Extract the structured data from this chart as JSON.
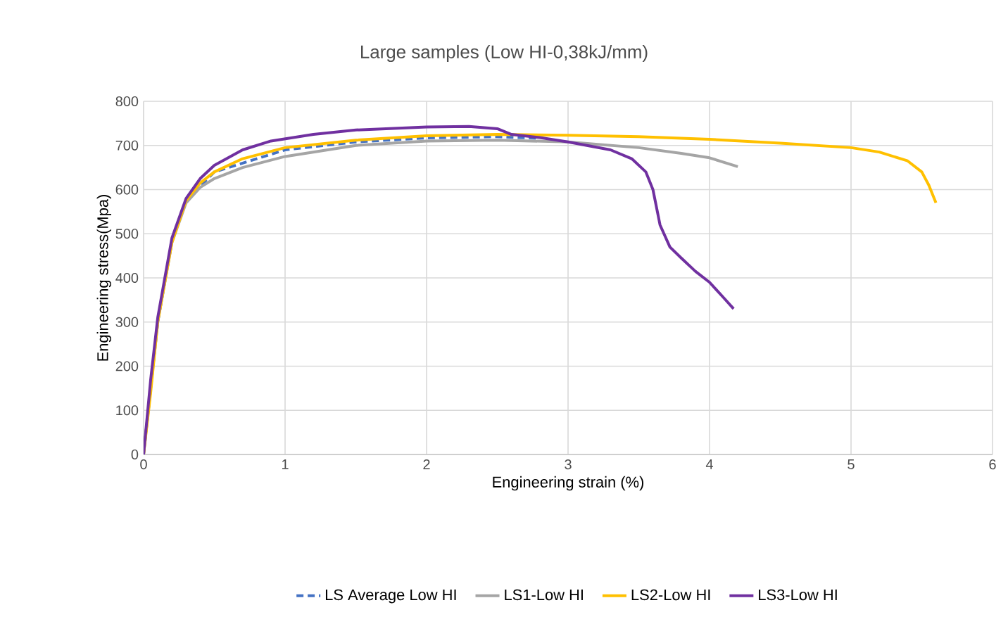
{
  "chart_data": {
    "type": "line",
    "title": "Large samples (Low HI-0,38kJ/mm)",
    "xlabel": "Engineering strain (%)",
    "ylabel": "Engineering stress(Mpa)",
    "xlim": [
      0,
      6
    ],
    "ylim": [
      0,
      800
    ],
    "xticks": [
      0,
      1,
      2,
      3,
      4,
      5,
      6
    ],
    "yticks": [
      0,
      100,
      200,
      300,
      400,
      500,
      600,
      700,
      800
    ],
    "grid": true,
    "legend": "bottom",
    "series": [
      {
        "name": "LS Average Low HI",
        "color": "#4472c4",
        "line_style": "dashed",
        "x": [
          0,
          0.1,
          0.2,
          0.3,
          0.5,
          1,
          1.5,
          2,
          2.5,
          2.8
        ],
        "values": [
          0,
          300,
          483,
          575,
          640,
          690,
          708,
          717,
          720,
          716
        ]
      },
      {
        "name": "LS1-Low HI",
        "color": "#a5a5a5",
        "x": [
          0,
          0.05,
          0.1,
          0.2,
          0.3,
          0.4,
          0.5,
          0.7,
          1,
          1.5,
          2,
          2.5,
          3,
          3.5,
          3.8,
          4,
          4.2
        ],
        "values": [
          0,
          150,
          300,
          480,
          570,
          605,
          625,
          650,
          675,
          700,
          710,
          712,
          708,
          695,
          682,
          672,
          652
        ]
      },
      {
        "name": "LS2-Low HI",
        "color": "#ffc000",
        "x": [
          0,
          0.05,
          0.1,
          0.2,
          0.3,
          0.4,
          0.5,
          0.7,
          1,
          1.5,
          2,
          2.5,
          3,
          3.5,
          4,
          4.5,
          5,
          5.2,
          5.4,
          5.5,
          5.55,
          5.6
        ],
        "values": [
          0,
          140,
          300,
          480,
          575,
          615,
          640,
          670,
          695,
          712,
          722,
          725,
          723,
          720,
          714,
          705,
          695,
          685,
          665,
          640,
          610,
          570
        ]
      },
      {
        "name": "LS3-Low HI",
        "color": "#7030a0",
        "x": [
          0,
          0.05,
          0.1,
          0.2,
          0.3,
          0.4,
          0.5,
          0.7,
          0.9,
          1.2,
          1.5,
          2,
          2.3,
          2.5,
          2.6,
          2.8,
          3,
          3.3,
          3.45,
          3.55,
          3.6,
          3.65,
          3.72,
          3.8,
          3.9,
          4.0,
          4.1,
          4.17
        ],
        "values": [
          0,
          170,
          310,
          490,
          580,
          625,
          655,
          690,
          710,
          725,
          735,
          742,
          743,
          738,
          725,
          718,
          708,
          690,
          670,
          640,
          600,
          520,
          470,
          445,
          415,
          390,
          355,
          330
        ]
      }
    ]
  }
}
